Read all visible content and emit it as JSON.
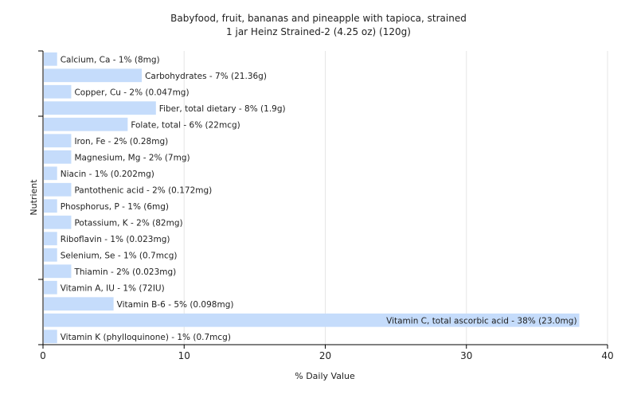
{
  "chart_data": {
    "type": "bar",
    "orientation": "horizontal",
    "title": "Babyfood, fruit, bananas and pineapple with tapioca, strained",
    "subtitle": "1 jar Heinz Strained-2 (4.25 oz) (120g)",
    "xlabel": "% Daily Value",
    "ylabel": "Nutrient",
    "xlim": [
      0,
      40
    ],
    "xticks": [
      0,
      10,
      20,
      30,
      40
    ],
    "grid": true,
    "colors": {
      "bar": "#c5dcfb",
      "grid": "#e6e6e6",
      "axis": "#000000"
    },
    "categories": [
      "Calcium, Ca",
      "Carbohydrates",
      "Copper, Cu",
      "Fiber, total dietary",
      "Folate, total",
      "Iron, Fe",
      "Magnesium, Mg",
      "Niacin",
      "Pantothenic acid",
      "Phosphorus, P",
      "Potassium, K",
      "Riboflavin",
      "Selenium, Se",
      "Thiamin",
      "Vitamin A, IU",
      "Vitamin B-6",
      "Vitamin C, total ascorbic acid",
      "Vitamin K (phylloquinone)"
    ],
    "values": [
      1,
      7,
      2,
      8,
      6,
      2,
      2,
      1,
      2,
      1,
      2,
      1,
      1,
      2,
      1,
      5,
      38,
      1
    ],
    "labels": [
      "Calcium, Ca - 1% (8mg)",
      "Carbohydrates - 7% (21.36g)",
      "Copper, Cu - 2% (0.047mg)",
      "Fiber, total dietary - 8% (1.9g)",
      "Folate, total - 6% (22mcg)",
      "Iron, Fe - 2% (0.28mg)",
      "Magnesium, Mg - 2% (7mg)",
      "Niacin - 1% (0.202mg)",
      "Pantothenic acid - 2% (0.172mg)",
      "Phosphorus, P - 1% (6mg)",
      "Potassium, K - 2% (82mg)",
      "Riboflavin - 1% (0.023mg)",
      "Selenium, Se - 1% (0.7mcg)",
      "Thiamin - 2% (0.023mg)",
      "Vitamin A, IU - 1% (72IU)",
      "Vitamin B-6 - 5% (0.098mg)",
      "Vitamin C, total ascorbic acid - 38% (23.0mg)",
      "Vitamin K (phylloquinone) - 1% (0.7mcg)"
    ]
  }
}
